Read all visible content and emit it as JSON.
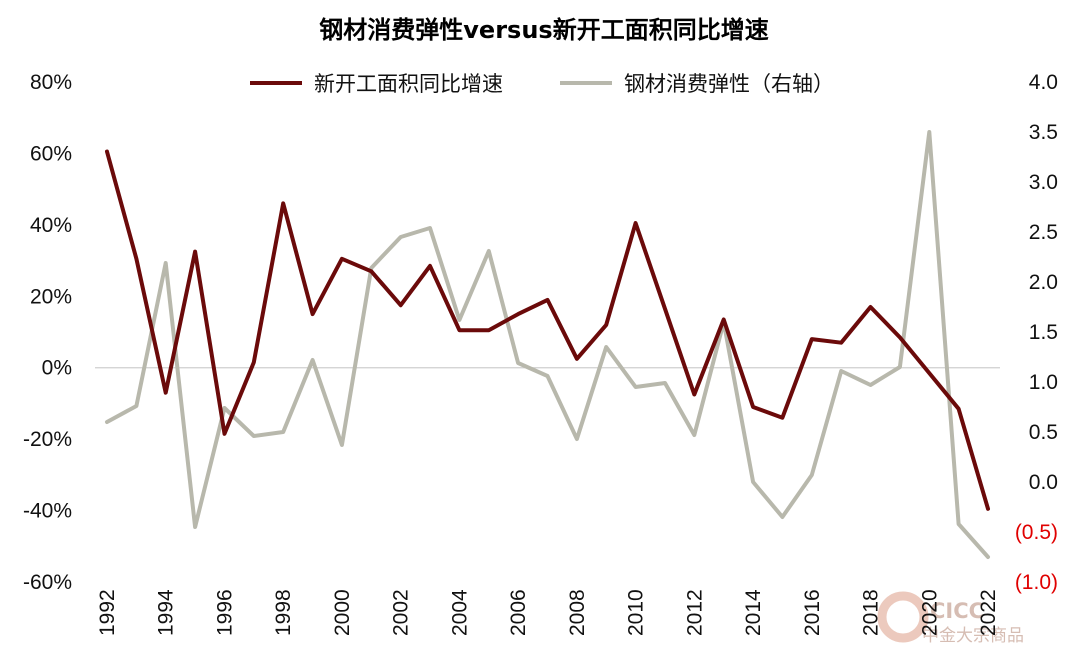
{
  "chart_data": {
    "type": "line",
    "title": "钢材消费弹性versus新开工面积同比增速",
    "x": [
      1992,
      1993,
      1994,
      1995,
      1996,
      1997,
      1998,
      1999,
      2000,
      2001,
      2002,
      2003,
      2004,
      2005,
      2006,
      2007,
      2008,
      2009,
      2010,
      2011,
      2012,
      2013,
      2014,
      2015,
      2016,
      2017,
      2018,
      2019,
      2020,
      2021,
      2022
    ],
    "x_tick_labels": [
      "1992",
      "1994",
      "1996",
      "1998",
      "2000",
      "2002",
      "2004",
      "2006",
      "2008",
      "2010",
      "2012",
      "2014",
      "2016",
      "2018",
      "2020",
      "2022"
    ],
    "left_axis": {
      "ylim": [
        -60,
        80
      ],
      "tick_labels": [
        "80%",
        "60%",
        "40%",
        "20%",
        "0%",
        "-20%",
        "-40%",
        "-60%"
      ],
      "tick_values": [
        80,
        60,
        40,
        20,
        0,
        -20,
        -40,
        -60
      ]
    },
    "right_axis": {
      "ylim": [
        -1.0,
        4.0
      ],
      "tick_labels": [
        "4.0",
        "3.5",
        "3.0",
        "2.5",
        "2.0",
        "1.5",
        "1.0",
        "0.5",
        "0.0",
        "(0.5)",
        "(1.0)"
      ],
      "tick_values": [
        4.0,
        3.5,
        3.0,
        2.5,
        2.0,
        1.5,
        1.0,
        0.5,
        0.0,
        -0.5,
        -1.0
      ],
      "negative_color": "#e00000"
    },
    "series": [
      {
        "name": "新开工面积同比增速",
        "axis": "left",
        "color": "#6b0a0a",
        "values": [
          60.5,
          30.5,
          -7.0,
          32.5,
          -18.5,
          1.5,
          46.0,
          15.0,
          30.5,
          27.0,
          17.5,
          28.5,
          10.5,
          10.5,
          15.0,
          19.0,
          2.5,
          12.0,
          40.5,
          16.5,
          -7.5,
          13.5,
          -11.0,
          -14.0,
          8.0,
          7.0,
          17.0,
          8.5,
          -1.5,
          -11.5,
          -39.5
        ]
      },
      {
        "name": "钢材消费弹性（右轴）",
        "axis": "right",
        "color": "#b8b8ac",
        "values": [
          0.6,
          0.76,
          2.19,
          -0.45,
          0.74,
          0.46,
          0.5,
          1.22,
          0.37,
          2.14,
          2.45,
          2.54,
          1.62,
          2.31,
          1.19,
          1.06,
          0.43,
          1.35,
          0.95,
          0.99,
          0.47,
          1.6,
          0.0,
          -0.35,
          0.07,
          1.11,
          0.97,
          1.15,
          3.5,
          -0.42,
          -0.75
        ]
      }
    ],
    "legend_position": "top-center",
    "watermark": "CICC 中金大宗商品"
  }
}
